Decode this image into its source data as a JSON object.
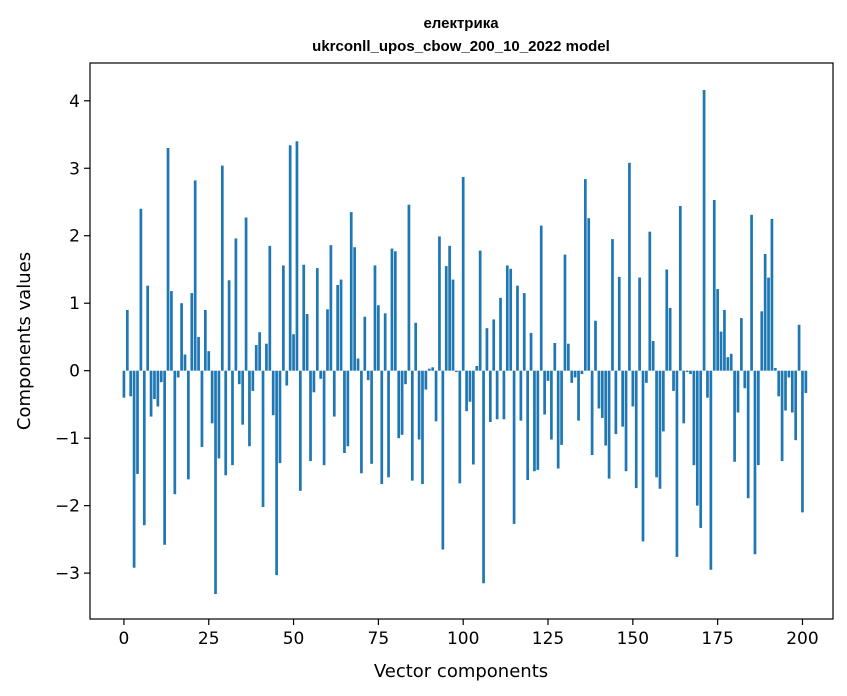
{
  "chart_data": {
    "type": "bar",
    "title": "електрика",
    "subtitle": "ukrconll_upos_cbow_200_10_2022 model",
    "xlabel": "Vector components",
    "ylabel": "Components values",
    "xlim": [
      -10,
      209
    ],
    "ylim": [
      -3.68,
      4.56
    ],
    "xticks": [
      0,
      25,
      50,
      75,
      100,
      125,
      150,
      175,
      200
    ],
    "xtick_labels": [
      "0",
      "25",
      "50",
      "75",
      "100",
      "125",
      "150",
      "175",
      "200"
    ],
    "yticks": [
      -3,
      -2,
      -1,
      0,
      1,
      2,
      3,
      4
    ],
    "ytick_labels": [
      "−3",
      "−2",
      "−1",
      "0",
      "1",
      "2",
      "3",
      "4"
    ],
    "grid": false,
    "bar_color": "#1f77b4",
    "x_start": 0,
    "values": [
      -0.4,
      0.9,
      -0.38,
      -2.92,
      -1.53,
      2.4,
      -2.29,
      1.26,
      -0.68,
      -0.42,
      -0.53,
      -0.17,
      -2.58,
      3.3,
      1.18,
      -1.83,
      -0.1,
      1.0,
      0.24,
      -1.61,
      1.15,
      2.82,
      0.5,
      -1.13,
      0.9,
      0.29,
      -0.78,
      -3.31,
      -1.3,
      3.04,
      -1.55,
      1.34,
      -1.4,
      1.96,
      -0.2,
      -0.8,
      2.27,
      -1.12,
      -0.3,
      0.38,
      0.57,
      -2.02,
      0.4,
      1.85,
      -0.66,
      -3.03,
      -1.37,
      1.56,
      -0.22,
      3.34,
      0.54,
      3.4,
      -1.78,
      1.57,
      0.84,
      -1.34,
      -0.32,
      1.52,
      -0.12,
      -1.4,
      0.91,
      1.86,
      -0.68,
      1.27,
      1.35,
      -1.22,
      -1.12,
      2.35,
      1.83,
      0.18,
      -1.52,
      0.8,
      -0.14,
      -1.38,
      1.56,
      0.97,
      -1.68,
      0.85,
      -1.58,
      1.81,
      1.77,
      -1.0,
      -0.95,
      -0.2,
      2.46,
      -1.63,
      0.71,
      -1.02,
      -1.68,
      -0.28,
      0.03,
      0.05,
      -0.75,
      1.99,
      -2.65,
      1.55,
      1.85,
      1.35,
      -0.02,
      -1.67,
      2.87,
      -0.6,
      -0.46,
      -1.39,
      0.07,
      1.78,
      -3.15,
      0.63,
      -0.76,
      0.76,
      -0.72,
      1.08,
      -0.72,
      1.56,
      1.51,
      -2.27,
      1.26,
      -0.74,
      1.15,
      -1.62,
      0.56,
      -1.49,
      -1.47,
      2.15,
      -0.65,
      -0.15,
      -1.02,
      0.41,
      -1.45,
      -1.1,
      1.72,
      0.4,
      -0.18,
      -0.1,
      -0.74,
      -0.05,
      2.84,
      2.26,
      -1.25,
      0.74,
      -0.56,
      -0.7,
      -1.11,
      -1.6,
      1.95,
      -0.94,
      1.39,
      -0.83,
      -1.49,
      3.08,
      -0.53,
      -1.74,
      1.38,
      -2.53,
      -0.18,
      2.06,
      0.44,
      -1.58,
      -1.75,
      -0.9,
      1.5,
      0.93,
      -0.3,
      -2.76,
      2.44,
      -0.78,
      -0.02,
      -0.05,
      -1.4,
      -2.0,
      -2.33,
      4.16,
      -0.4,
      -2.95,
      2.53,
      1.21,
      0.58,
      0.9,
      0.2,
      0.25,
      -1.35,
      -0.62,
      0.78,
      -0.26,
      -1.89,
      2.31,
      -2.72,
      -1.4,
      0.88,
      1.73,
      1.38,
      2.25,
      0.04,
      -0.38,
      -1.34,
      -0.59,
      -0.1,
      -0.62,
      -1.03,
      0.68,
      -2.1,
      -0.33
    ]
  }
}
